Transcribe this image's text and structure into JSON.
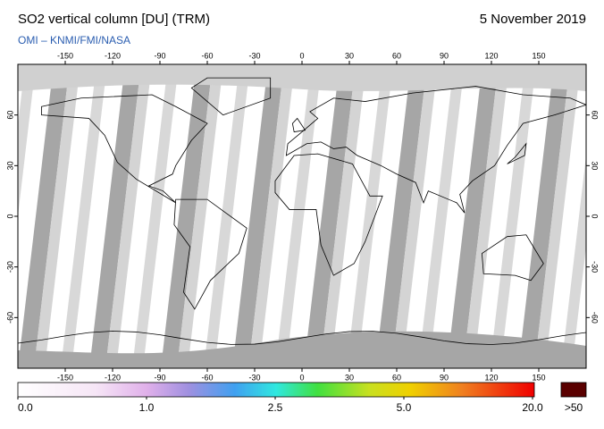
{
  "header": {
    "title": "SO2 vertical column [DU] (TRM)",
    "subtitle": "OMI  –  KNMI/FMI/NASA",
    "date": "5 November 2019"
  },
  "map": {
    "lonlim": [
      -180,
      180
    ],
    "latlim": [
      -90,
      90
    ],
    "lon_ticks": [
      -150,
      -120,
      -90,
      -60,
      -30,
      0,
      30,
      60,
      90,
      120,
      150
    ],
    "lat_ticks": [
      60,
      30,
      0,
      -30,
      -60
    ]
  },
  "colorbar": {
    "ticks": [
      {
        "value": 0,
        "label": "0.0"
      },
      {
        "value": 1,
        "label": "1.0"
      },
      {
        "value": 2.5,
        "label": "2.5"
      },
      {
        "value": 5,
        "label": "5.0"
      },
      {
        "value": 20,
        "label": "20.0"
      }
    ],
    "overflow_label": ">50"
  }
}
